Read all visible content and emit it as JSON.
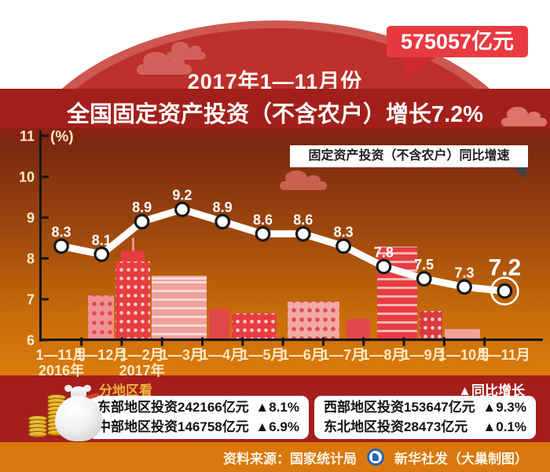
{
  "badge": {
    "text": "575057亿元"
  },
  "header": {
    "title_line1": "2017年1—11月份",
    "title_line2": "全国固定资产投资（不含农户）增长7.2%"
  },
  "chart_data": {
    "type": "line",
    "title": "固定资产投资（不含农户）同比增速",
    "unit_label": "(%)",
    "categories": [
      {
        "label": "1—11月",
        "year": "2016年"
      },
      {
        "label": "1—12月",
        "year": ""
      },
      {
        "label": "1—2月",
        "year": "2017年"
      },
      {
        "label": "1—3月",
        "year": ""
      },
      {
        "label": "1—4月",
        "year": ""
      },
      {
        "label": "1—5月",
        "year": ""
      },
      {
        "label": "1—6月",
        "year": ""
      },
      {
        "label": "1—7月",
        "year": ""
      },
      {
        "label": "1—8月",
        "year": ""
      },
      {
        "label": "1—9月",
        "year": ""
      },
      {
        "label": "1—10月",
        "year": ""
      },
      {
        "label": "1—11月",
        "year": ""
      }
    ],
    "values": [
      8.3,
      8.1,
      8.9,
      9.2,
      8.9,
      8.6,
      8.6,
      8.3,
      7.8,
      7.5,
      7.3,
      7.2
    ],
    "ylim": [
      6,
      11
    ],
    "yticks": [
      6,
      7,
      8,
      9,
      10,
      11
    ],
    "grid": false,
    "legend_position": "top-right",
    "highlight_last_point": true
  },
  "regions": {
    "section_title": "分地区看",
    "legend_note": "▲同比增长",
    "cards": [
      {
        "rows": [
          {
            "text": "东部地区投资242166亿元",
            "change": "▲8.1%"
          },
          {
            "text": "中部地区投资146758亿元",
            "change": "▲6.9%"
          }
        ]
      },
      {
        "rows": [
          {
            "text": "西部地区投资153647亿元",
            "change": "▲9.3%"
          },
          {
            "text": "东北地区投资28473亿元",
            "change": "▲0.1%"
          }
        ]
      }
    ]
  },
  "footer": {
    "source": "资料来源：国家统计局",
    "credit": "新华社发（大巢制图）"
  },
  "colors": {
    "badge_red": "#e73a40",
    "title_band_red": "#a2201b",
    "dome_red": "#bd302b",
    "chart_top": "#7b2a10",
    "chart_bottom": "#da7b0d",
    "region_band_red": "#a41e1c",
    "footer_orange": "#d9780e",
    "gold_text": "#edb33c",
    "line_color": "#ffffff",
    "axis_color": "#161616",
    "tick_label_color": "#fdeac6"
  }
}
